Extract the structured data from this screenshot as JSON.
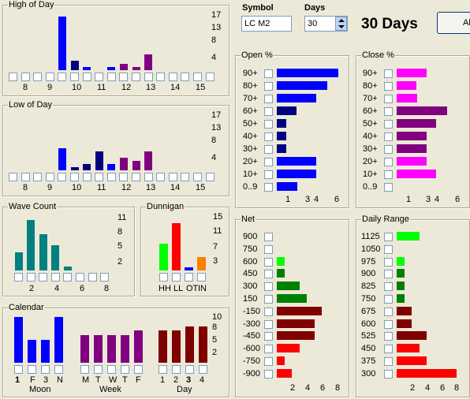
{
  "header": {
    "symbol_label": "Symbol",
    "symbol_value": "LC M2",
    "days_label": "Days",
    "days_value": "30",
    "days_title": "30 Days",
    "button_label": "Al"
  },
  "high_of_day": {
    "title": "High of Day",
    "y_ticks": [
      "17",
      "13",
      "8",
      "4"
    ],
    "x_labels": [
      "8",
      "9",
      "10",
      "11",
      "12",
      "13",
      "14",
      "15"
    ],
    "values": [
      0,
      0,
      0,
      0,
      17,
      3,
      1,
      0,
      1,
      2,
      1,
      5,
      0,
      0,
      0,
      0,
      0
    ],
    "colors": [
      "#0000ff",
      "#0000ff",
      "#0000ff",
      "#0000ff",
      "#0000ff",
      "#000080",
      "#0000ff",
      "#000080",
      "#0000ff",
      "#800080",
      "#800080",
      "#800080",
      "#800080",
      "#800080",
      "#800080",
      "#800080",
      "#800080"
    ]
  },
  "low_of_day": {
    "title": "Low of Day",
    "y_ticks": [
      "17",
      "13",
      "8",
      "4"
    ],
    "x_labels": [
      "8",
      "9",
      "10",
      "11",
      "12",
      "13",
      "14",
      "15"
    ],
    "values": [
      0,
      0,
      0,
      0,
      7,
      1,
      2,
      6,
      2,
      4,
      3,
      6,
      0,
      0,
      0,
      0,
      0
    ],
    "colors": [
      "#0000ff",
      "#0000ff",
      "#0000ff",
      "#0000ff",
      "#0000ff",
      "#000080",
      "#000080",
      "#000080",
      "#0000ff",
      "#800080",
      "#800080",
      "#800080",
      "#800080",
      "#800080",
      "#800080",
      "#800080",
      "#800080"
    ]
  },
  "wave_count": {
    "title": "Wave Count",
    "y_ticks": [
      "11",
      "8",
      "5",
      "2"
    ],
    "x_labels": [
      "2",
      "4",
      "6",
      "8"
    ],
    "values": [
      5,
      14,
      10,
      7,
      1,
      0,
      0,
      0
    ],
    "color": "#008080"
  },
  "dunnigan": {
    "title": "Dunnigan",
    "y_ticks": [
      "15",
      "11",
      "7",
      "3"
    ],
    "x_labels": [
      "HH",
      "LL",
      "OT",
      "IN"
    ],
    "values": [
      8,
      14,
      1,
      4
    ],
    "colors": [
      "#00ff00",
      "#ff0000",
      "#0000ff",
      "#ff8000"
    ]
  },
  "calendar": {
    "title": "Calendar",
    "y_ticks": [
      "10",
      "8",
      "5",
      "2"
    ],
    "moon": {
      "label": "Moon",
      "x_labels": [
        "1",
        "F",
        "3",
        "N"
      ],
      "values": [
        10,
        5,
        5,
        10
      ],
      "color": "#0000ff"
    },
    "week": {
      "label": "Week",
      "x_labels": [
        "M",
        "T",
        "W",
        "T",
        "F"
      ],
      "values": [
        6,
        6,
        6,
        6,
        7
      ],
      "color": "#800080"
    },
    "day": {
      "label": "Day",
      "x_labels": [
        "1",
        "2",
        "3",
        "4"
      ],
      "values": [
        7,
        7,
        8,
        8
      ],
      "color": "#800000"
    }
  },
  "open_pct": {
    "title": "Open  %",
    "rows": [
      "90+",
      "80+",
      "70+",
      "60+",
      "50+",
      "40+",
      "30+",
      "20+",
      "10+",
      "0..9"
    ],
    "values": [
      6.5,
      5.3,
      4.2,
      2.1,
      1,
      1,
      1,
      4.2,
      4.2,
      2.2
    ],
    "colors": [
      "#0000ff",
      "#0000ff",
      "#0000ff",
      "#000080",
      "#000080",
      "#000080",
      "#000080",
      "#0000ff",
      "#0000ff",
      "#0000ff"
    ],
    "x_labels": [
      "1",
      "3",
      "4",
      "6"
    ]
  },
  "close_pct": {
    "title": "Close  %",
    "rows": [
      "90+",
      "80+",
      "70+",
      "60+",
      "50+",
      "40+",
      "30+",
      "20+",
      "10+",
      "0..9"
    ],
    "values": [
      3.2,
      2.1,
      2.2,
      5.3,
      4.2,
      3.2,
      3.2,
      3.2,
      4.2,
      0
    ],
    "colors": [
      "#ff00ff",
      "#ff00ff",
      "#ff00ff",
      "#800080",
      "#800080",
      "#800080",
      "#800080",
      "#ff00ff",
      "#ff00ff",
      "#ff00ff"
    ],
    "x_labels": [
      "1",
      "3",
      "4",
      "6"
    ]
  },
  "net": {
    "title": "Net",
    "rows": [
      "900",
      "750",
      "600",
      "450",
      "300",
      "150",
      "-150",
      "-300",
      "-450",
      "-600",
      "-750",
      "-900"
    ],
    "values": [
      0,
      0,
      1,
      1,
      3,
      4,
      6,
      5,
      5,
      3,
      1,
      2
    ],
    "colors": [
      "#00ff00",
      "#00ff00",
      "#00ff00",
      "#008000",
      "#008000",
      "#008000",
      "#800000",
      "#800000",
      "#800000",
      "#ff0000",
      "#ff0000",
      "#ff0000"
    ],
    "x_labels": [
      "2",
      "4",
      "6",
      "8"
    ]
  },
  "daily_range": {
    "title": "Daily Range",
    "rows": [
      "1125",
      "1050",
      "975",
      "900",
      "825",
      "750",
      "675",
      "600",
      "525",
      "450",
      "375",
      "300"
    ],
    "values": [
      3,
      0,
      1,
      1,
      1,
      1,
      2,
      2,
      4,
      3,
      4,
      8
    ],
    "colors": [
      "#00ff00",
      "#00ff00",
      "#00ff00",
      "#008000",
      "#008000",
      "#008000",
      "#800000",
      "#800000",
      "#800000",
      "#ff0000",
      "#ff0000",
      "#ff0000"
    ],
    "x_labels": [
      "2",
      "4",
      "6",
      "8"
    ]
  }
}
